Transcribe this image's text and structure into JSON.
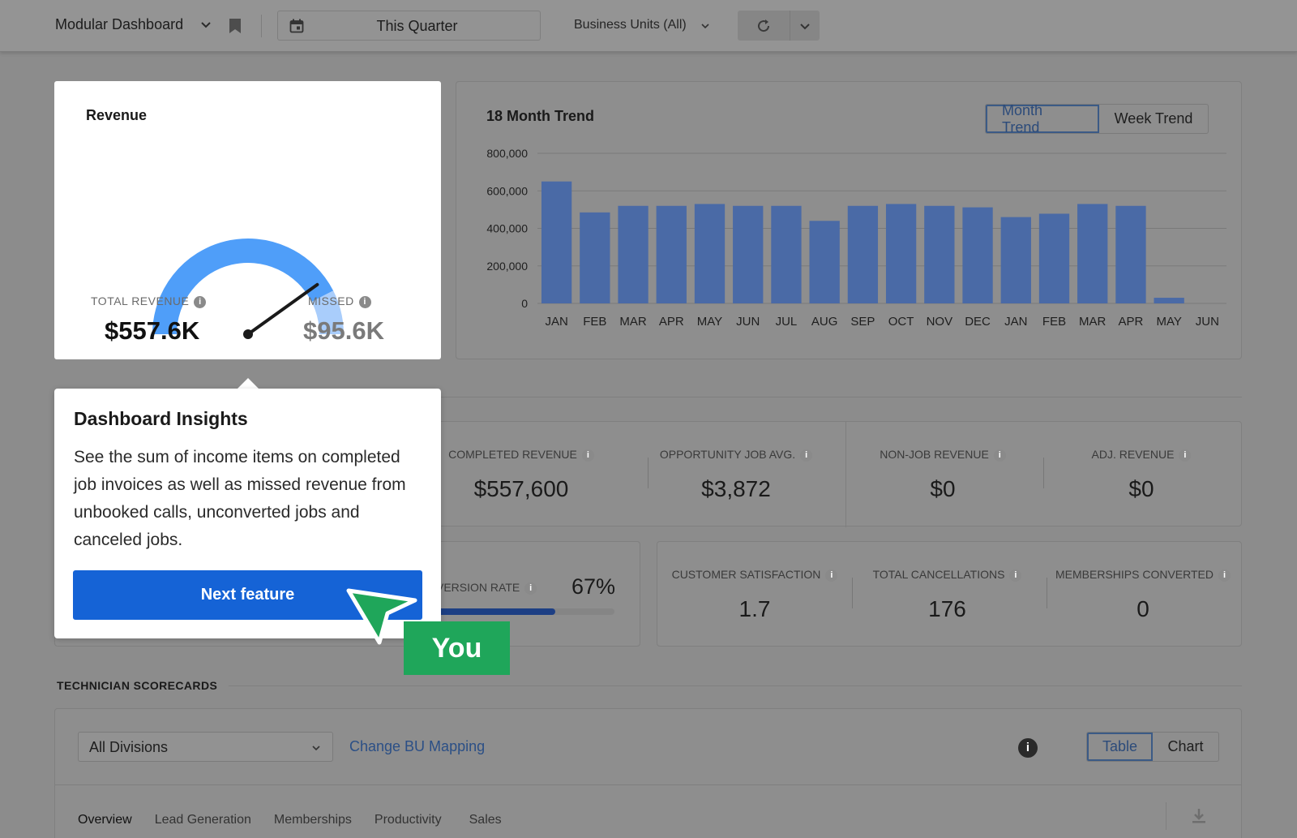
{
  "topbar": {
    "title": "Modular Dashboard",
    "date_range": "This Quarter",
    "business_units": "Business Units (All)"
  },
  "revenue": {
    "title": "Revenue",
    "gauge_fraction": 0.85,
    "total_label": "TOTAL REVENUE",
    "total_value": "$557.6K",
    "missed_label": "MISSED",
    "missed_value": "$95.6K"
  },
  "trend": {
    "title": "18 Month Trend",
    "toggle": [
      "Month Trend",
      "Week Trend"
    ],
    "active_toggle": "Month Trend"
  },
  "chart_data": {
    "type": "bar",
    "title": "18 Month Trend",
    "xlabel": "",
    "ylabel": "",
    "ylim": [
      0,
      800000
    ],
    "yticks": [
      "800,000",
      "600,000",
      "400,000",
      "200,000",
      "0"
    ],
    "ytick_values": [
      800000,
      600000,
      400000,
      200000,
      0
    ],
    "categories": [
      "JAN",
      "FEB",
      "MAR",
      "APR",
      "MAY",
      "JUN",
      "JUL",
      "AUG",
      "SEP",
      "OCT",
      "NOV",
      "DEC",
      "JAN",
      "FEB",
      "MAR",
      "APR",
      "MAY",
      "JUN"
    ],
    "values": [
      650000,
      485000,
      520000,
      520000,
      530000,
      520000,
      520000,
      440000,
      520000,
      530000,
      520000,
      512000,
      460000,
      478000,
      530000,
      520000,
      30000,
      0
    ],
    "grid": true,
    "bar_color": "#4a6aa6"
  },
  "stats_row1": [
    {
      "label": "COMPLETED REVENUE",
      "value": "$557,600"
    },
    {
      "label": "OPPORTUNITY JOB AVG.",
      "value": "$3,872"
    },
    {
      "label": "NON-JOB REVENUE",
      "value": "$0"
    },
    {
      "label": "ADJ. REVENUE",
      "value": "$0"
    }
  ],
  "conversion": {
    "label": "VERSION RATE",
    "value": "67%",
    "fraction": 0.67
  },
  "stats_row2": [
    {
      "label": "CUSTOMER SATISFACTION",
      "value": "1.7"
    },
    {
      "label": "TOTAL CANCELLATIONS",
      "value": "176"
    },
    {
      "label": "MEMBERSHIPS CONVERTED",
      "value": "0"
    }
  ],
  "tech": {
    "section_label": "TECHNICIAN SCORECARDS",
    "division": "All Divisions",
    "bu_link": "Change BU Mapping",
    "toggle": [
      "Table",
      "Chart"
    ],
    "active_toggle": "Table",
    "tabs": [
      "Overview",
      "Lead Generation",
      "Memberships",
      "Productivity",
      "Sales"
    ]
  },
  "popover": {
    "title": "Dashboard Insights",
    "body": "See the sum of income items on completed job invoices as well as missed revenue from unbooked calls, unconverted jobs and canceled jobs.",
    "button": "Next feature"
  },
  "cursor": {
    "label": "You",
    "color": "#1fa65a"
  }
}
